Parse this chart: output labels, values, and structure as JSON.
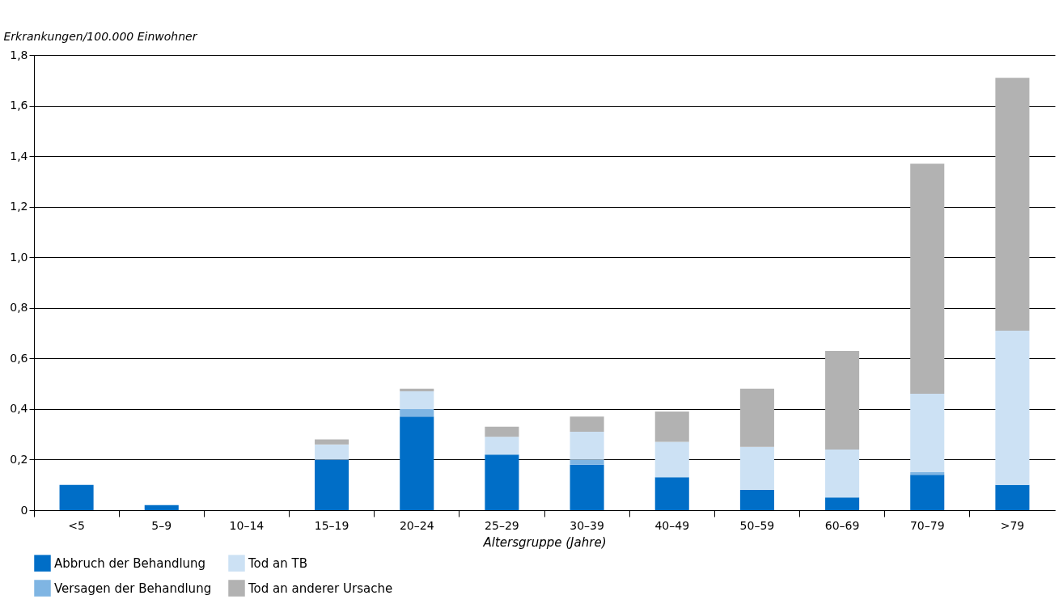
{
  "chart_data": {
    "type": "bar",
    "stacked": true,
    "ylabel": "Erkrankungen/100.000 Einwohner",
    "xlabel": "Altersgruppe (Jahre)",
    "categories": [
      "<5",
      "5–9",
      "10–14",
      "15–19",
      "20–24",
      "25–29",
      "30–39",
      "40–49",
      "50–59",
      "60–69",
      "70–79",
      ">79"
    ],
    "series": [
      {
        "name": "Abbruch der Behandlung",
        "color": "#006ec7",
        "values": [
          0.1,
          0.02,
          0,
          0.2,
          0.37,
          0.22,
          0.18,
          0.13,
          0.08,
          0.05,
          0.14,
          0.1
        ]
      },
      {
        "name": "Versagen der Behandlung",
        "color": "#7fb5e3",
        "values": [
          0,
          0,
          0,
          0,
          0.03,
          0,
          0.02,
          0,
          0,
          0,
          0.01,
          0
        ]
      },
      {
        "name": "Tod an TB",
        "color": "#cce1f4",
        "values": [
          0,
          0,
          0,
          0.06,
          0.07,
          0.07,
          0.11,
          0.14,
          0.17,
          0.19,
          0.31,
          0.61
        ]
      },
      {
        "name": "Tod an anderer Ursache",
        "color": "#b2b2b2",
        "values": [
          0,
          0,
          0,
          0.02,
          0.01,
          0.04,
          0.06,
          0.12,
          0.23,
          0.39,
          0.91,
          1.0
        ]
      }
    ],
    "ylim": [
      0,
      1.8
    ],
    "yticks": [
      0,
      {
        "value": 0.2,
        "label": "0,2"
      },
      {
        "value": 0.4,
        "label": "0,4"
      },
      {
        "value": 0.6,
        "label": "0,6"
      },
      {
        "value": 0.8,
        "label": "0,8"
      },
      {
        "value": 1.0,
        "label": "1,0"
      },
      {
        "value": 1.2,
        "label": "1,2"
      },
      {
        "value": 1.4,
        "label": "1,4"
      },
      {
        "value": 1.6,
        "label": "1,6"
      },
      {
        "value": 1.8,
        "label": "1,8"
      }
    ],
    "grid": "y",
    "legend": "bottom left"
  }
}
